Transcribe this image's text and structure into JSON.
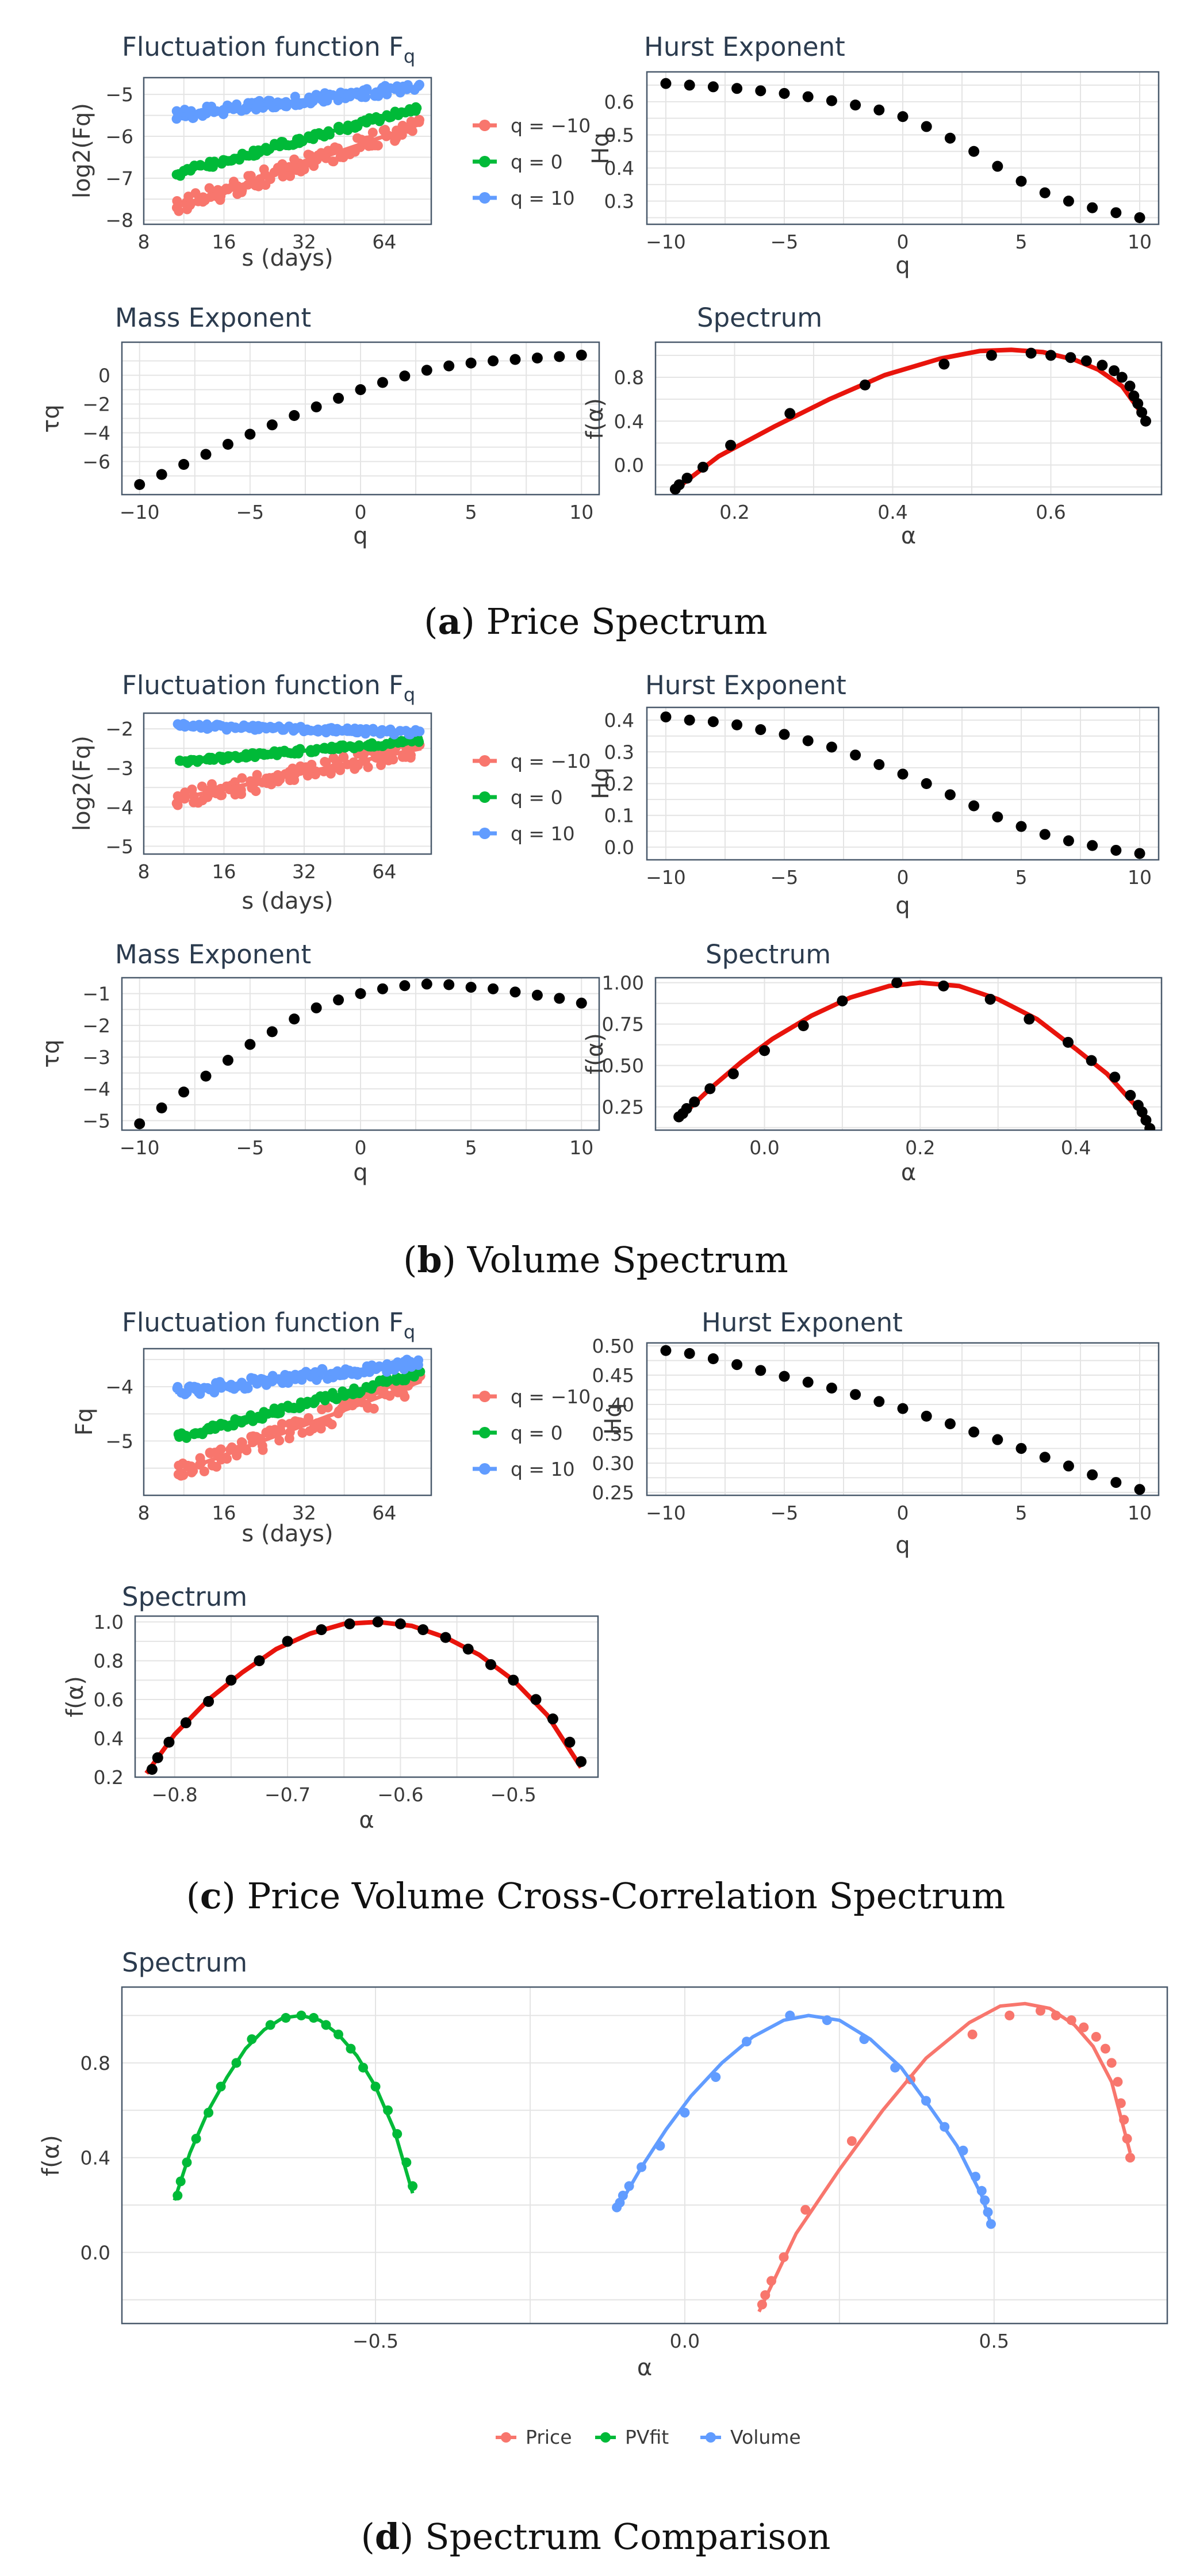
{
  "captions": [
    {
      "letter": "a",
      "text": "Price Spectrum"
    },
    {
      "letter": "b",
      "text": "Volume Spectrum"
    },
    {
      "letter": "c",
      "text": "Price Volume Cross-Correlation Spectrum"
    },
    {
      "letter": "d",
      "text": "Spectrum Comparison"
    }
  ],
  "colors": {
    "neg": "#f8766d",
    "zero": "#00ba38",
    "pos": "#619cff",
    "fit": "#e8140c",
    "point": "#000000",
    "frame": "#4a5a6c",
    "grid": "#e4e4e4"
  },
  "chart_data": [
    {
      "id": "a1",
      "type": "scatter",
      "title": "Fluctuation function F",
      "title_sub": "q",
      "xlabel": "s (days)",
      "ylabel": "log2(Fq)",
      "xscale": "log2",
      "xlim": [
        8,
        96
      ],
      "ylim": [
        -8.1,
        -4.6
      ],
      "xticks": [
        8,
        16,
        32,
        64
      ],
      "yticks": [
        -8,
        -7,
        -6,
        -5
      ],
      "legend": {
        "position": "right",
        "entries": [
          "q = −10",
          "q = 0",
          "q = 10"
        ]
      },
      "series": [
        {
          "name": "q = −10",
          "start": -7.7,
          "end": -5.7,
          "noise": 0.2
        },
        {
          "name": "q = 0",
          "start": -6.9,
          "end": -5.3,
          "noise": 0.08
        },
        {
          "name": "q = 10",
          "start": -5.5,
          "end": -4.8,
          "noise": 0.12
        }
      ]
    },
    {
      "id": "a2",
      "type": "scatter",
      "title": "Hurst Exponent",
      "xlabel": "q",
      "ylabel": "Hq",
      "xlim": [
        -10.8,
        10.8
      ],
      "ylim": [
        0.23,
        0.69
      ],
      "xticks": [
        -10,
        -5,
        0,
        5,
        10
      ],
      "yticks": [
        0.3,
        0.4,
        0.5,
        0.6
      ],
      "x": [
        -10,
        -9,
        -8,
        -7,
        -6,
        -5,
        -4,
        -3,
        -2,
        -1,
        0,
        1,
        2,
        3,
        4,
        5,
        6,
        7,
        8,
        9,
        10
      ],
      "y": [
        0.655,
        0.65,
        0.645,
        0.64,
        0.633,
        0.625,
        0.615,
        0.603,
        0.59,
        0.575,
        0.555,
        0.525,
        0.49,
        0.45,
        0.405,
        0.36,
        0.325,
        0.3,
        0.28,
        0.265,
        0.25
      ]
    },
    {
      "id": "a3",
      "type": "scatter",
      "title": "Mass Exponent",
      "xlabel": "q",
      "ylabel": "τq",
      "xlim": [
        -10.8,
        10.8
      ],
      "ylim": [
        -8.3,
        2.3
      ],
      "xticks": [
        -10,
        -5,
        0,
        5,
        10
      ],
      "yticks": [
        -6,
        -4,
        -2,
        0
      ],
      "x": [
        -10,
        -9,
        -8,
        -7,
        -6,
        -5,
        -4,
        -3,
        -2,
        -1,
        0,
        1,
        2,
        3,
        4,
        5,
        6,
        7,
        8,
        9,
        10
      ],
      "y": [
        -7.6,
        -6.9,
        -6.2,
        -5.5,
        -4.8,
        -4.1,
        -3.45,
        -2.8,
        -2.2,
        -1.6,
        -1.0,
        -0.5,
        -0.05,
        0.35,
        0.65,
        0.85,
        1.0,
        1.1,
        1.2,
        1.3,
        1.4
      ]
    },
    {
      "id": "a4",
      "type": "scatter",
      "title": "Spectrum",
      "xlabel": "α",
      "ylabel": "f(α)",
      "xlim": [
        0.1,
        0.74
      ],
      "ylim": [
        -0.27,
        1.12
      ],
      "xticks": [
        0.2,
        0.4,
        0.6
      ],
      "yticks": [
        0.0,
        0.4,
        0.8
      ],
      "x": [
        0.125,
        0.13,
        0.14,
        0.16,
        0.195,
        0.27,
        0.365,
        0.465,
        0.525,
        0.575,
        0.6,
        0.625,
        0.645,
        0.665,
        0.68,
        0.69,
        0.7,
        0.705,
        0.71,
        0.715,
        0.72
      ],
      "y": [
        -0.22,
        -0.18,
        -0.12,
        -0.02,
        0.18,
        0.47,
        0.73,
        0.92,
        1.0,
        1.02,
        1.0,
        0.98,
        0.95,
        0.91,
        0.86,
        0.8,
        0.72,
        0.63,
        0.56,
        0.48,
        0.4
      ],
      "fit": {
        "x": [
          0.12,
          0.18,
          0.25,
          0.32,
          0.39,
          0.46,
          0.51,
          0.55,
          0.59,
          0.63,
          0.66,
          0.69,
          0.72
        ],
        "y": [
          -0.25,
          0.08,
          0.35,
          0.6,
          0.82,
          0.97,
          1.04,
          1.05,
          1.03,
          0.96,
          0.87,
          0.72,
          0.42
        ]
      }
    },
    {
      "id": "b1",
      "type": "scatter",
      "title": "Fluctuation function F",
      "title_sub": "q",
      "xlabel": "s (days)",
      "ylabel": "log2(Fq)",
      "xscale": "log2",
      "xlim": [
        8,
        96
      ],
      "ylim": [
        -5.2,
        -1.6
      ],
      "xticks": [
        8,
        16,
        32,
        64
      ],
      "yticks": [
        -5,
        -4,
        -3,
        -2
      ],
      "legend": {
        "position": "right",
        "entries": [
          "q = −10",
          "q = 0",
          "q = 10"
        ]
      },
      "series": [
        {
          "name": "q = −10",
          "start": -3.8,
          "end": -2.5,
          "noise": 0.22
        },
        {
          "name": "q = 0",
          "start": -2.85,
          "end": -2.3,
          "noise": 0.06
        },
        {
          "name": "q = 10",
          "start": -1.92,
          "end": -2.1,
          "noise": 0.07
        }
      ]
    },
    {
      "id": "b2",
      "type": "scatter",
      "title": "Hurst Exponent",
      "xlabel": "q",
      "ylabel": "Hq",
      "xlim": [
        -10.8,
        10.8
      ],
      "ylim": [
        -0.04,
        0.44
      ],
      "xticks": [
        -10,
        -5,
        0,
        5,
        10
      ],
      "yticks": [
        0.0,
        0.1,
        0.2,
        0.3,
        0.4
      ],
      "x": [
        -10,
        -9,
        -8,
        -7,
        -6,
        -5,
        -4,
        -3,
        -2,
        -1,
        0,
        1,
        2,
        3,
        4,
        5,
        6,
        7,
        8,
        9,
        10
      ],
      "y": [
        0.41,
        0.4,
        0.395,
        0.385,
        0.37,
        0.355,
        0.335,
        0.315,
        0.29,
        0.26,
        0.23,
        0.2,
        0.165,
        0.13,
        0.095,
        0.065,
        0.04,
        0.02,
        0.005,
        -0.01,
        -0.02
      ]
    },
    {
      "id": "b3",
      "type": "scatter",
      "title": "Mass Exponent",
      "xlabel": "q",
      "ylabel": "τq",
      "xlim": [
        -10.8,
        10.8
      ],
      "ylim": [
        -5.3,
        -0.5
      ],
      "xticks": [
        -10,
        -5,
        0,
        5,
        10
      ],
      "yticks": [
        -5,
        -4,
        -3,
        -2,
        -1
      ],
      "x": [
        -10,
        -9,
        -8,
        -7,
        -6,
        -5,
        -4,
        -3,
        -2,
        -1,
        0,
        1,
        2,
        3,
        4,
        5,
        6,
        7,
        8,
        9,
        10
      ],
      "y": [
        -5.1,
        -4.6,
        -4.1,
        -3.6,
        -3.1,
        -2.6,
        -2.2,
        -1.8,
        -1.45,
        -1.2,
        -1.0,
        -0.85,
        -0.75,
        -0.7,
        -0.72,
        -0.8,
        -0.85,
        -0.95,
        -1.05,
        -1.15,
        -1.3
      ]
    },
    {
      "id": "b4",
      "type": "scatter",
      "title": "Spectrum",
      "xlabel": "α",
      "ylabel": "f(α)",
      "xlim": [
        -0.14,
        0.51
      ],
      "ylim": [
        0.11,
        1.03
      ],
      "xticks": [
        0.0,
        0.2,
        0.4
      ],
      "yticks": [
        0.25,
        0.5,
        0.75,
        1.0
      ],
      "x": [
        -0.11,
        -0.105,
        -0.1,
        -0.09,
        -0.07,
        -0.04,
        0.0,
        0.05,
        0.1,
        0.17,
        0.23,
        0.29,
        0.34,
        0.39,
        0.42,
        0.45,
        0.47,
        0.48,
        0.485,
        0.49,
        0.495
      ],
      "y": [
        0.19,
        0.21,
        0.24,
        0.28,
        0.36,
        0.45,
        0.59,
        0.74,
        0.89,
        1.0,
        0.98,
        0.9,
        0.78,
        0.64,
        0.53,
        0.43,
        0.32,
        0.26,
        0.22,
        0.17,
        0.12
      ],
      "fit": {
        "x": [
          -0.11,
          -0.07,
          -0.03,
          0.01,
          0.06,
          0.11,
          0.16,
          0.2,
          0.25,
          0.3,
          0.35,
          0.4,
          0.44,
          0.48,
          0.495
        ],
        "y": [
          0.18,
          0.36,
          0.52,
          0.66,
          0.8,
          0.91,
          0.98,
          1.0,
          0.98,
          0.9,
          0.78,
          0.6,
          0.45,
          0.24,
          0.12
        ]
      }
    },
    {
      "id": "c1",
      "type": "scatter",
      "title": "Fluctuation function F",
      "title_sub": "q",
      "xlabel": "s (days)",
      "ylabel": "Fq",
      "xscale": "log2",
      "xlim": [
        8,
        96
      ],
      "ylim": [
        -6.0,
        -3.3
      ],
      "xticks": [
        8,
        16,
        32,
        64
      ],
      "yticks": [
        -5,
        -4
      ],
      "legend": {
        "position": "right",
        "entries": [
          "q = −10",
          "q = 0",
          "q = 10"
        ]
      },
      "series": [
        {
          "name": "q = −10",
          "start": -5.6,
          "end": -3.9,
          "noise": 0.18
        },
        {
          "name": "q = 0",
          "start": -4.95,
          "end": -3.75,
          "noise": 0.07
        },
        {
          "name": "q = 10",
          "start": -4.1,
          "end": -3.55,
          "noise": 0.1
        }
      ]
    },
    {
      "id": "c2",
      "type": "scatter",
      "title": "Hurst Exponent",
      "xlabel": "q",
      "ylabel": "Hq",
      "xlim": [
        -10.8,
        10.8
      ],
      "ylim": [
        0.245,
        0.505
      ],
      "xticks": [
        -10,
        -5,
        0,
        5,
        10
      ],
      "yticks": [
        0.25,
        0.3,
        0.35,
        0.4,
        0.45,
        0.5
      ],
      "x": [
        -10,
        -9,
        -8,
        -7,
        -6,
        -5,
        -4,
        -3,
        -2,
        -1,
        0,
        1,
        2,
        3,
        4,
        5,
        6,
        7,
        8,
        9,
        10
      ],
      "y": [
        0.492,
        0.487,
        0.478,
        0.468,
        0.458,
        0.448,
        0.438,
        0.428,
        0.417,
        0.405,
        0.393,
        0.38,
        0.367,
        0.353,
        0.34,
        0.325,
        0.31,
        0.295,
        0.28,
        0.267,
        0.255
      ]
    },
    {
      "id": "c3",
      "type": "scatter",
      "title": "Spectrum",
      "xlabel": "α",
      "ylabel": "f(α)",
      "xlim": [
        -0.835,
        -0.425
      ],
      "ylim": [
        0.2,
        1.03
      ],
      "xticks": [
        -0.8,
        -0.7,
        -0.6,
        -0.5
      ],
      "yticks": [
        0.2,
        0.4,
        0.6,
        0.8,
        1.0
      ],
      "x": [
        -0.82,
        -0.815,
        -0.805,
        -0.79,
        -0.77,
        -0.75,
        -0.725,
        -0.7,
        -0.67,
        -0.645,
        -0.62,
        -0.6,
        -0.58,
        -0.56,
        -0.54,
        -0.52,
        -0.5,
        -0.48,
        -0.465,
        -0.45,
        -0.44
      ],
      "y": [
        0.24,
        0.3,
        0.38,
        0.48,
        0.59,
        0.7,
        0.8,
        0.9,
        0.96,
        0.99,
        1.0,
        0.99,
        0.96,
        0.92,
        0.86,
        0.78,
        0.7,
        0.6,
        0.5,
        0.38,
        0.28
      ],
      "fit": {
        "x": [
          -0.825,
          -0.8,
          -0.77,
          -0.74,
          -0.71,
          -0.68,
          -0.65,
          -0.62,
          -0.59,
          -0.56,
          -0.53,
          -0.5,
          -0.47,
          -0.44
        ],
        "y": [
          0.22,
          0.42,
          0.6,
          0.74,
          0.86,
          0.94,
          0.99,
          1.0,
          0.98,
          0.92,
          0.83,
          0.7,
          0.52,
          0.25
        ]
      }
    },
    {
      "id": "d1",
      "type": "scatter",
      "title": "Spectrum",
      "xlabel": "α",
      "ylabel": "f(α)",
      "xlim": [
        -0.91,
        0.78
      ],
      "ylim": [
        -0.3,
        1.12
      ],
      "xticks": [
        -0.5,
        0.0,
        0.5
      ],
      "yticks": [
        0.0,
        0.4,
        0.8
      ],
      "legend": {
        "position": "bottom",
        "entries": [
          "Price",
          "PVfit",
          "Volume"
        ]
      },
      "series": [
        {
          "name": "Price",
          "x": [
            0.125,
            0.13,
            0.14,
            0.16,
            0.195,
            0.27,
            0.365,
            0.465,
            0.525,
            0.575,
            0.6,
            0.625,
            0.645,
            0.665,
            0.68,
            0.69,
            0.7,
            0.705,
            0.71,
            0.715,
            0.72
          ],
          "y": [
            -0.22,
            -0.18,
            -0.12,
            -0.02,
            0.18,
            0.47,
            0.73,
            0.92,
            1.0,
            1.02,
            1.0,
            0.98,
            0.95,
            0.91,
            0.86,
            0.8,
            0.72,
            0.63,
            0.56,
            0.48,
            0.4
          ],
          "fit": {
            "x": [
              0.12,
              0.18,
              0.25,
              0.32,
              0.39,
              0.46,
              0.51,
              0.55,
              0.59,
              0.63,
              0.66,
              0.69,
              0.72
            ],
            "y": [
              -0.25,
              0.08,
              0.35,
              0.6,
              0.82,
              0.97,
              1.04,
              1.05,
              1.03,
              0.96,
              0.87,
              0.72,
              0.42
            ]
          }
        },
        {
          "name": "PVfit",
          "x": [
            -0.82,
            -0.815,
            -0.805,
            -0.79,
            -0.77,
            -0.75,
            -0.725,
            -0.7,
            -0.67,
            -0.645,
            -0.62,
            -0.6,
            -0.58,
            -0.56,
            -0.54,
            -0.52,
            -0.5,
            -0.48,
            -0.465,
            -0.45,
            -0.44
          ],
          "y": [
            0.24,
            0.3,
            0.38,
            0.48,
            0.59,
            0.7,
            0.8,
            0.9,
            0.96,
            0.99,
            1.0,
            0.99,
            0.96,
            0.92,
            0.86,
            0.78,
            0.7,
            0.6,
            0.5,
            0.38,
            0.28
          ],
          "fit": {
            "x": [
              -0.825,
              -0.8,
              -0.77,
              -0.74,
              -0.71,
              -0.68,
              -0.65,
              -0.62,
              -0.59,
              -0.56,
              -0.53,
              -0.5,
              -0.47,
              -0.44
            ],
            "y": [
              0.22,
              0.42,
              0.6,
              0.74,
              0.86,
              0.94,
              0.99,
              1.0,
              0.98,
              0.92,
              0.83,
              0.7,
              0.52,
              0.25
            ]
          }
        },
        {
          "name": "Volume",
          "x": [
            -0.11,
            -0.105,
            -0.1,
            -0.09,
            -0.07,
            -0.04,
            0.0,
            0.05,
            0.1,
            0.17,
            0.23,
            0.29,
            0.34,
            0.39,
            0.42,
            0.45,
            0.47,
            0.48,
            0.485,
            0.49,
            0.495
          ],
          "y": [
            0.19,
            0.21,
            0.24,
            0.28,
            0.36,
            0.45,
            0.59,
            0.74,
            0.89,
            1.0,
            0.98,
            0.9,
            0.78,
            0.64,
            0.53,
            0.43,
            0.32,
            0.26,
            0.22,
            0.17,
            0.12
          ],
          "fit": {
            "x": [
              -0.11,
              -0.07,
              -0.03,
              0.01,
              0.06,
              0.11,
              0.16,
              0.2,
              0.25,
              0.3,
              0.35,
              0.4,
              0.44,
              0.48,
              0.495
            ],
            "y": [
              0.18,
              0.36,
              0.52,
              0.66,
              0.8,
              0.91,
              0.98,
              1.0,
              0.98,
              0.9,
              0.78,
              0.6,
              0.45,
              0.24,
              0.12
            ]
          }
        }
      ]
    }
  ]
}
